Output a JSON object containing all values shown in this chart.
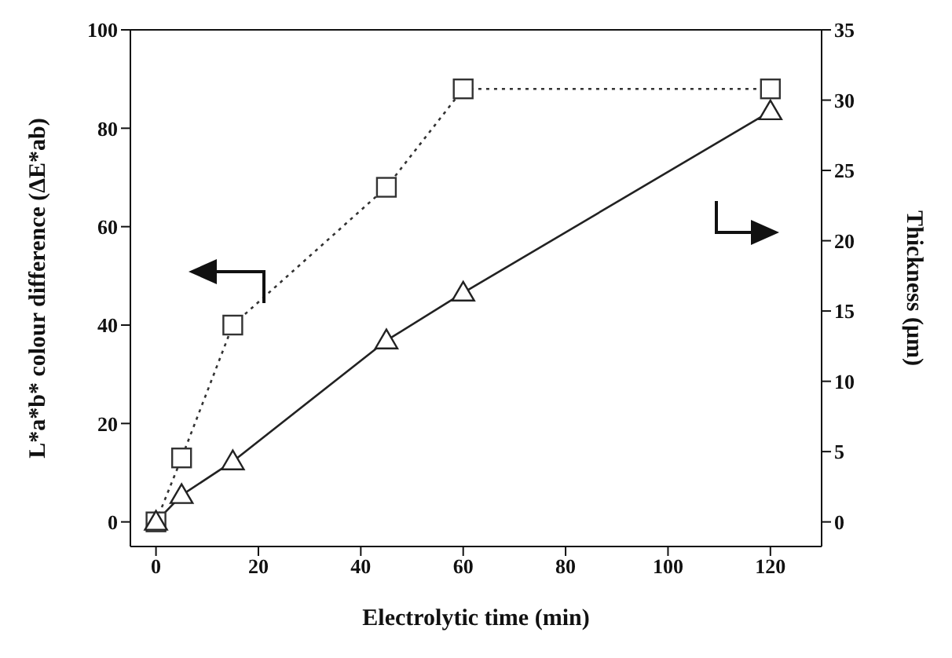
{
  "chart_data": {
    "type": "line",
    "xlabel": "Electrolytic time (min)",
    "ylabel": "L*a*b* colour difference (ΔE*ab)",
    "y2label": "Thickness (μm)",
    "x": [
      0,
      5,
      15,
      45,
      60,
      120
    ],
    "series": [
      {
        "color": "#333333",
        "values": [
          0,
          13,
          40,
          68,
          88,
          88
        ],
        "marker": "square",
        "line_style": "dotted"
      },
      {
        "color": "#222222",
        "values": [
          0,
          1.9,
          4.3,
          12.9,
          16.3,
          29.2
        ],
        "marker": "triangle",
        "line_style": "solid",
        "axis": "y2"
      }
    ],
    "xlim": [
      -5,
      130
    ],
    "xticks": [
      0,
      20,
      40,
      60,
      80,
      100,
      120
    ],
    "ylim": [
      -5,
      100
    ],
    "yticks": [
      0,
      20,
      40,
      60,
      80,
      100
    ],
    "y2lim": [
      -1.75,
      35
    ],
    "y2ticks": [
      0,
      5,
      10,
      15,
      20,
      25,
      30,
      35
    ],
    "grid": false,
    "legend": false
  }
}
